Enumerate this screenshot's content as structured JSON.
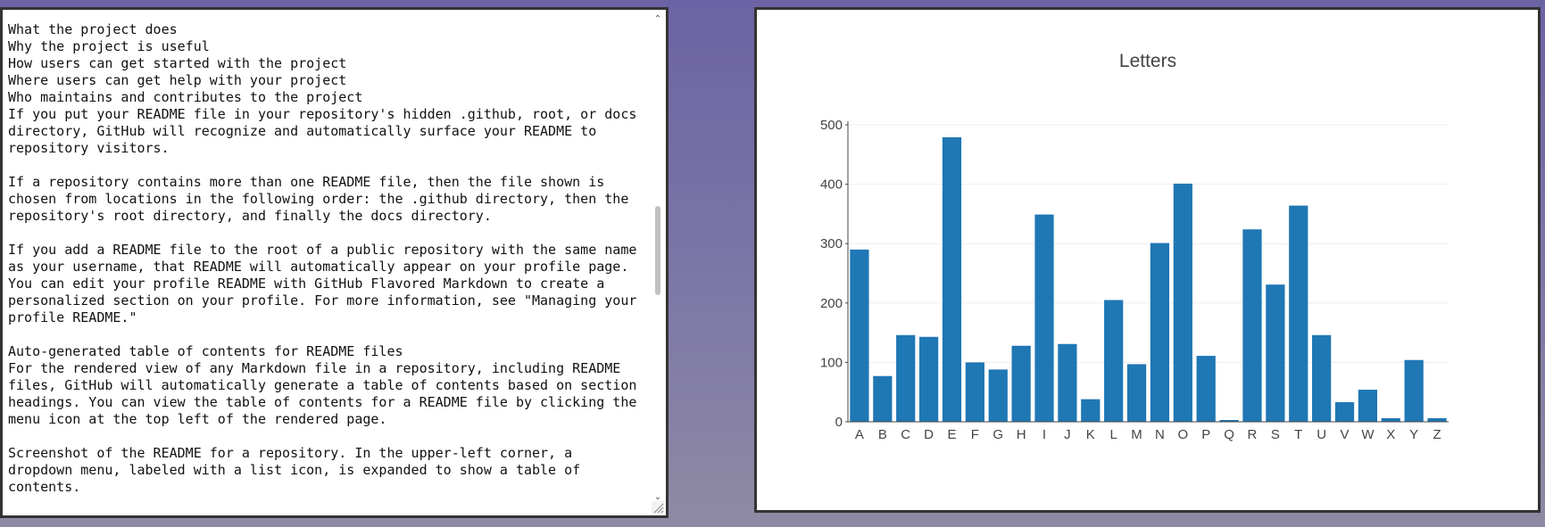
{
  "text_area": {
    "content": "What the project does\nWhy the project is useful\nHow users can get started with the project\nWhere users can get help with your project\nWho maintains and contributes to the project\nIf you put your README file in your repository's hidden .github, root, or docs\ndirectory, GitHub will recognize and automatically surface your README to\nrepository visitors.\n\nIf a repository contains more than one README file, then the file shown is\nchosen from locations in the following order: the .github directory, then the\nrepository's root directory, and finally the docs directory.\n\nIf you add a README file to the root of a public repository with the same name\nas your username, that README will automatically appear on your profile page.\nYou can edit your profile README with GitHub Flavored Markdown to create a\npersonalized section on your profile. For more information, see \"Managing your\nprofile README.\"\n\nAuto-generated table of contents for README files\nFor the rendered view of any Markdown file in a repository, including README\nfiles, GitHub will automatically generate a table of contents based on section\nheadings. You can view the table of contents for a README file by clicking the\nmenu icon at the top left of the rendered page.\n\nScreenshot of the README for a repository. In the upper-left corner, a\ndropdown menu, labeled with a list icon, is expanded to show a table of\ncontents.\n\nSection links in README files and blob pages",
    "scroll_up_icon": "chevron-up-icon",
    "scroll_down_icon": "chevron-down-icon",
    "resize_icon": "resize-grip-icon"
  },
  "chart_data": {
    "type": "bar",
    "title": "Letters",
    "xlabel": "",
    "ylabel": "",
    "categories": [
      "A",
      "B",
      "C",
      "D",
      "E",
      "F",
      "G",
      "H",
      "I",
      "J",
      "K",
      "L",
      "M",
      "N",
      "O",
      "P",
      "Q",
      "R",
      "S",
      "T",
      "U",
      "V",
      "W",
      "X",
      "Y",
      "Z"
    ],
    "values": [
      290,
      77,
      146,
      143,
      479,
      100,
      88,
      128,
      349,
      131,
      38,
      205,
      97,
      301,
      401,
      111,
      3,
      324,
      231,
      364,
      146,
      33,
      54,
      6,
      104,
      6
    ],
    "ylim": [
      0,
      500
    ],
    "yticks": [
      0,
      100,
      200,
      300,
      400,
      500
    ],
    "grid": true,
    "legend": "none",
    "bar_color": "#1f77b4"
  }
}
